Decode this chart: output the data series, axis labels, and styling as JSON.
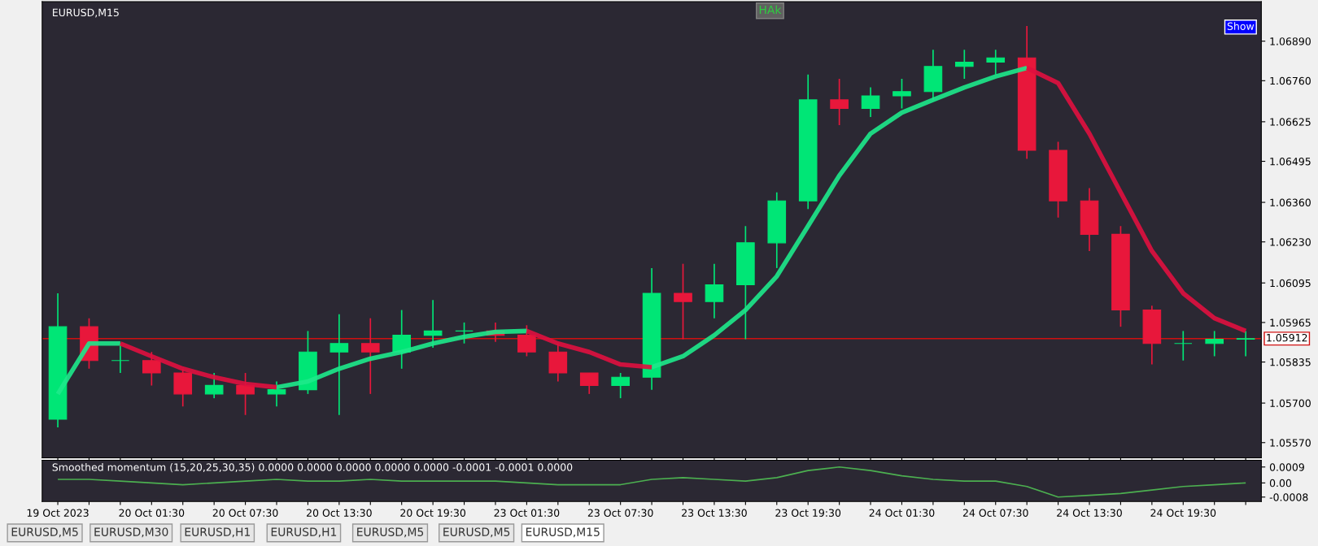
{
  "chart_data": [
    {
      "type": "candlestick",
      "title": "EURUSD,M15",
      "categories": [
        null,
        null,
        null,
        null,
        null,
        null,
        null,
        null,
        null,
        null,
        null,
        null,
        null,
        null,
        null,
        null,
        null,
        null,
        null,
        null,
        null,
        null,
        null,
        null,
        null,
        null,
        null,
        null,
        null,
        null,
        null,
        null,
        null,
        null,
        null,
        null,
        null,
        null,
        null
      ],
      "ohlc": [
        [
          1.05647,
          1.06061,
          1.0562,
          1.05951
        ],
        [
          1.05951,
          1.05979,
          1.05813,
          1.0584
        ],
        [
          1.0584,
          1.05896,
          1.05799,
          1.0584
        ],
        [
          1.0584,
          1.05868,
          1.05758,
          1.05799
        ],
        [
          1.05799,
          1.05813,
          1.05689,
          1.0573
        ],
        [
          1.0573,
          1.05799,
          1.05716,
          1.05758
        ],
        [
          1.05758,
          1.05799,
          1.05661,
          1.0573
        ],
        [
          1.0573,
          1.05771,
          1.05689,
          1.05744
        ],
        [
          1.05744,
          1.05937,
          1.0573,
          1.05868
        ],
        [
          1.05868,
          1.05992,
          1.05661,
          1.05896
        ],
        [
          1.05896,
          1.05979,
          1.0573,
          1.05868
        ],
        [
          1.05868,
          1.06006,
          1.05813,
          1.05923
        ],
        [
          1.05923,
          1.06039,
          1.05882,
          1.05937
        ],
        [
          1.05937,
          1.05965,
          1.05896,
          1.05937
        ],
        [
          1.05937,
          1.05965,
          1.05901,
          1.05923
        ],
        [
          1.05923,
          1.05956,
          1.05854,
          1.05868
        ],
        [
          1.05868,
          1.05896,
          1.05771,
          1.05799
        ],
        [
          1.05799,
          1.05799,
          1.0573,
          1.05758
        ],
        [
          1.05758,
          1.05799,
          1.05716,
          1.05785
        ],
        [
          1.05785,
          1.06144,
          1.05744,
          1.06061
        ],
        [
          1.06061,
          1.06158,
          1.0591,
          1.06034
        ],
        [
          1.06034,
          1.06158,
          1.05979,
          1.06089
        ],
        [
          1.06089,
          1.06282,
          1.0591,
          1.06227
        ],
        [
          1.06227,
          1.06393,
          1.06144,
          1.06365
        ],
        [
          1.06365,
          1.0678,
          1.06338,
          1.06697
        ],
        [
          1.06697,
          1.06766,
          1.06614,
          1.06669
        ],
        [
          1.06669,
          1.06738,
          1.06641,
          1.0671
        ],
        [
          1.0671,
          1.06766,
          1.06669,
          1.06724
        ],
        [
          1.06724,
          1.06862,
          1.06697,
          1.06807
        ],
        [
          1.06807,
          1.06862,
          1.06766,
          1.06821
        ],
        [
          1.06821,
          1.06862,
          1.0678,
          1.06835
        ],
        [
          1.06835,
          1.0694,
          1.06503,
          1.06531
        ],
        [
          1.06531,
          1.06559,
          1.0631,
          1.06365
        ],
        [
          1.06365,
          1.06407,
          1.062,
          1.06255
        ],
        [
          1.06255,
          1.06282,
          1.05951,
          1.06006
        ],
        [
          1.06006,
          1.0602,
          1.05827,
          1.05896
        ],
        [
          1.05896,
          1.05937,
          1.0584,
          1.05896
        ],
        [
          1.05896,
          1.05937,
          1.05854,
          1.0591
        ],
        [
          1.0591,
          1.05937,
          1.05854,
          1.05912
        ]
      ],
      "colors": [
        "#00e676",
        "#e8173b",
        "#00e676",
        "#e8173b",
        "#e8173b",
        "#00e676",
        "#e8173b",
        "#00e676",
        "#00e676",
        "#00e676",
        "#e8173b",
        "#00e676",
        "#00e676",
        "#00e676",
        "#e8173b",
        "#e8173b",
        "#e8173b",
        "#e8173b",
        "#00e676",
        "#00e676",
        "#e8173b",
        "#00e676",
        "#00e676",
        "#00e676",
        "#00e676",
        "#e8173b",
        "#00e676",
        "#00e676",
        "#00e676",
        "#00e676",
        "#00e676",
        "#e8173b",
        "#e8173b",
        "#e8173b",
        "#e8173b",
        "#e8173b",
        "#00e676",
        "#00e676",
        "#00e676"
      ],
      "series": [
        {
          "type": "line",
          "color": "#1de98b",
          "values": [
            1.0573,
            1.05896,
            1.05896,
            null,
            null,
            null,
            null,
            1.05752,
            1.05771,
            1.05813,
            1.05846,
            1.05868,
            1.05896,
            1.05918,
            1.05934,
            1.05937,
            null,
            null,
            null,
            1.05818,
            1.05854,
            1.05923,
            1.06006,
            1.06117,
            1.06282,
            1.06448,
            1.06586,
            1.06655,
            1.06697,
            1.06738,
            1.06774,
            1.06802,
            null,
            null,
            null,
            null,
            null,
            null,
            null
          ]
        },
        {
          "type": "line",
          "color": "#e0103f",
          "values": [
            null,
            null,
            1.05896,
            1.05854,
            1.05813,
            1.05785,
            1.05763,
            1.05752,
            null,
            null,
            null,
            null,
            null,
            null,
            null,
            1.05937,
            1.05896,
            1.05868,
            1.05827,
            1.05818,
            null,
            null,
            null,
            null,
            null,
            null,
            null,
            null,
            null,
            null,
            null,
            1.06802,
            1.06752,
            1.06586,
            1.06393,
            1.062,
            1.06061,
            1.05979,
            1.05937
          ]
        }
      ],
      "ylim": [
        1.0552,
        1.0702
      ],
      "yticks": [
        {
          "value": 1.0689,
          "label": "1.06890"
        },
        {
          "value": 1.0676,
          "label": "1.06760"
        },
        1.06625,
        1.06495,
        {
          "value": 1.0636,
          "label": "1.06360"
        },
        {
          "value": 1.0623,
          "label": "1.06230"
        },
        1.06095,
        1.05965,
        1.05835,
        {
          "value": 1.057,
          "label": "1.05700"
        },
        {
          "value": 1.0557,
          "label": "1.05570"
        }
      ],
      "ref_lines": [
        {
          "axis": "y",
          "value": 1.05912,
          "label": "1.05912",
          "color": "#d01010"
        }
      ],
      "annotations": [
        "HAk",
        "Show",
        "EURUSD,M5",
        "EURUSD,M30",
        "EURUSD,H1",
        "EURUSD,H1",
        "EURUSD,M5",
        "EURUSD,M5",
        "EURUSD,M15"
      ],
      "tick_labels": "y",
      "grid": false
    },
    {
      "type": "line",
      "title": "Smoothed momentum (15,20,25,30,35) 0.0000 0.0000 0.0000 0.0000 0.0000 -0.0001 -0.0001 0.0000",
      "categories": [
        "19 Oct 2023",
        null,
        null,
        "20 Oct 01:30",
        null,
        null,
        "20 Oct 07:30",
        null,
        null,
        "20 Oct 13:30",
        null,
        null,
        "20 Oct 19:30",
        null,
        null,
        "23 Oct 01:30",
        null,
        null,
        "23 Oct 07:30",
        null,
        null,
        "23 Oct 13:30",
        null,
        null,
        "23 Oct 19:30",
        null,
        null,
        "24 Oct 01:30",
        null,
        null,
        "24 Oct 07:30",
        null,
        null,
        "24 Oct 13:30",
        null,
        null,
        "24 Oct 19:30",
        null,
        null
      ],
      "series": [
        {
          "color": "#4caf50",
          "values": [
            0.0002,
            0.0002,
            0.0001,
            0,
            -0.0001,
            0,
            0.0001,
            0.0002,
            0.0001,
            0.0001,
            0.0002,
            0.0001,
            0.0001,
            0.0001,
            0.0001,
            0,
            -0.0001,
            -0.0001,
            -0.0001,
            0.0002,
            0.0003,
            0.0002,
            0.0001,
            0.0003,
            0.0007,
            0.0009,
            0.0007,
            0.0004,
            0.0002,
            0.0001,
            0.0001,
            -0.0002,
            -0.0008,
            -0.0007,
            -0.0006,
            -0.0004,
            -0.0002,
            -0.0001,
            0
          ]
        }
      ],
      "ylim": [
        -0.00105,
        0.00128
      ],
      "yticks": [
        {
          "value": 0.0009,
          "label": "0.0009"
        },
        {
          "value": 0,
          "label": "0.00"
        },
        {
          "value": -0.0008,
          "label": "-0.0008"
        }
      ],
      "grid": false
    }
  ]
}
